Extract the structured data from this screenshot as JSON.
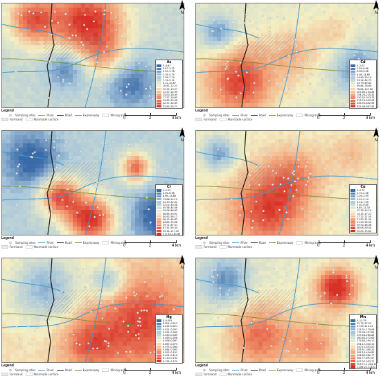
{
  "panels": [
    {
      "id": "as",
      "title": "As",
      "classes": [
        "0–0.67",
        "0.67–2.22",
        "2.22–3.78",
        "3.78–5.75",
        "5.76–7.74",
        "7.74–9.12",
        "9.12–10.67",
        "10.67–12.22",
        "12.22–13.57",
        "13.57–14.99",
        "15.00–16.45",
        "17.57–19.65",
        "19.65–22.56",
        "22.57–30.49",
        "32.82–50.73"
      ],
      "hotspot_position": "top"
    },
    {
      "id": "cd",
      "title": "Cd",
      "classes": [
        "0–2.03",
        "2.05–6.96",
        "6.96–9.08",
        "9.08–14.80",
        "14.90–23.14",
        "23.14–34.79",
        "34.79–49.84",
        "49.84–78.84",
        "78.84–107.60",
        "107.60–154.28",
        "154.28–220.32",
        "220.32–313.74",
        "313.74–445.93",
        "445.93–632.96",
        "632.96–897.49"
      ],
      "hotspot_position": "bottom-left"
    },
    {
      "id": "cr",
      "title": "Cr",
      "classes": [
        "0–2.03",
        "2.05–6.96",
        "6.96–13.86",
        "13.86–24.19",
        "24.19–32.02",
        "32.02–40.58",
        "40.58–44.06",
        "44.06–46.65",
        "46.65–50.92",
        "50.92–56.12",
        "56.12–64.85",
        "64.85–75.08",
        "79.71–87.51",
        "87.51–95.34",
        "95.34–117.42",
        "117.42–181.68"
      ],
      "hotspot_position": "center"
    },
    {
      "id": "cu",
      "title": "Cu",
      "classes": [
        "0–0.75",
        "0.75–2.26",
        "2.26–3.59",
        "3.59–5.14",
        "5.14–7.50",
        "7.50–9.85",
        "9.85–12.33",
        "12.33–14.15",
        "14.15–17.22",
        "17.22–21.50",
        "21.50–31.50",
        "31.50–39.50",
        "39.50–48.08",
        "48.08–59.00",
        "59.00–75.82"
      ],
      "hotspot_position": "bottom"
    },
    {
      "id": "hg",
      "title": "Hg",
      "classes": [
        "0–0.001",
        "0.001–0.012",
        "0.012–0.021",
        "0.021–0.031",
        "0.031–0.040",
        "0.040–0.049",
        "0.049–0.058",
        "0.058–0.067",
        "0.067–0.075",
        "0.075–0.084",
        "0.084–0.092",
        "0.092–0.101",
        "0.101–0.110",
        "0.110–0.132",
        "0.132–0.175"
      ],
      "hotspot_position": "right"
    },
    {
      "id": "mn",
      "title": "Mn",
      "classes": [
        "0–12.79",
        "12.79–37.55",
        "37.55–113.31",
        "113.31–179.06",
        "179.06–237.83",
        "237.83–260.84",
        "260.84–272.65",
        "272.65–294.11",
        "294.11–320.15",
        "320.15–353.51",
        "353.51–395.20",
        "395.20–454.85",
        "454.85–562.77",
        "562.77–697.07",
        "697.07–903.71",
        "903.71–1,284.21",
        "1,284.21–1,830.76"
      ],
      "hotspot_position": "top-right"
    }
  ],
  "legend": {
    "heading": "Legend",
    "items": [
      "Sampling sites",
      "River",
      "Road",
      "Expressway",
      "Mining area",
      "Farmland",
      "Manmade surface"
    ]
  },
  "scale_bar": {
    "labels": [
      "0",
      "2",
      "4 km"
    ]
  },
  "north_label": "N",
  "colors": {
    "low": "#3b6aa8",
    "mid_low": "#a9c8dc",
    "mid": "#f4efc4",
    "mid_high": "#f29c72",
    "high": "#d73027",
    "river": "#3d9ad1",
    "road": "#222222",
    "expressway": "#7a8a2a"
  }
}
